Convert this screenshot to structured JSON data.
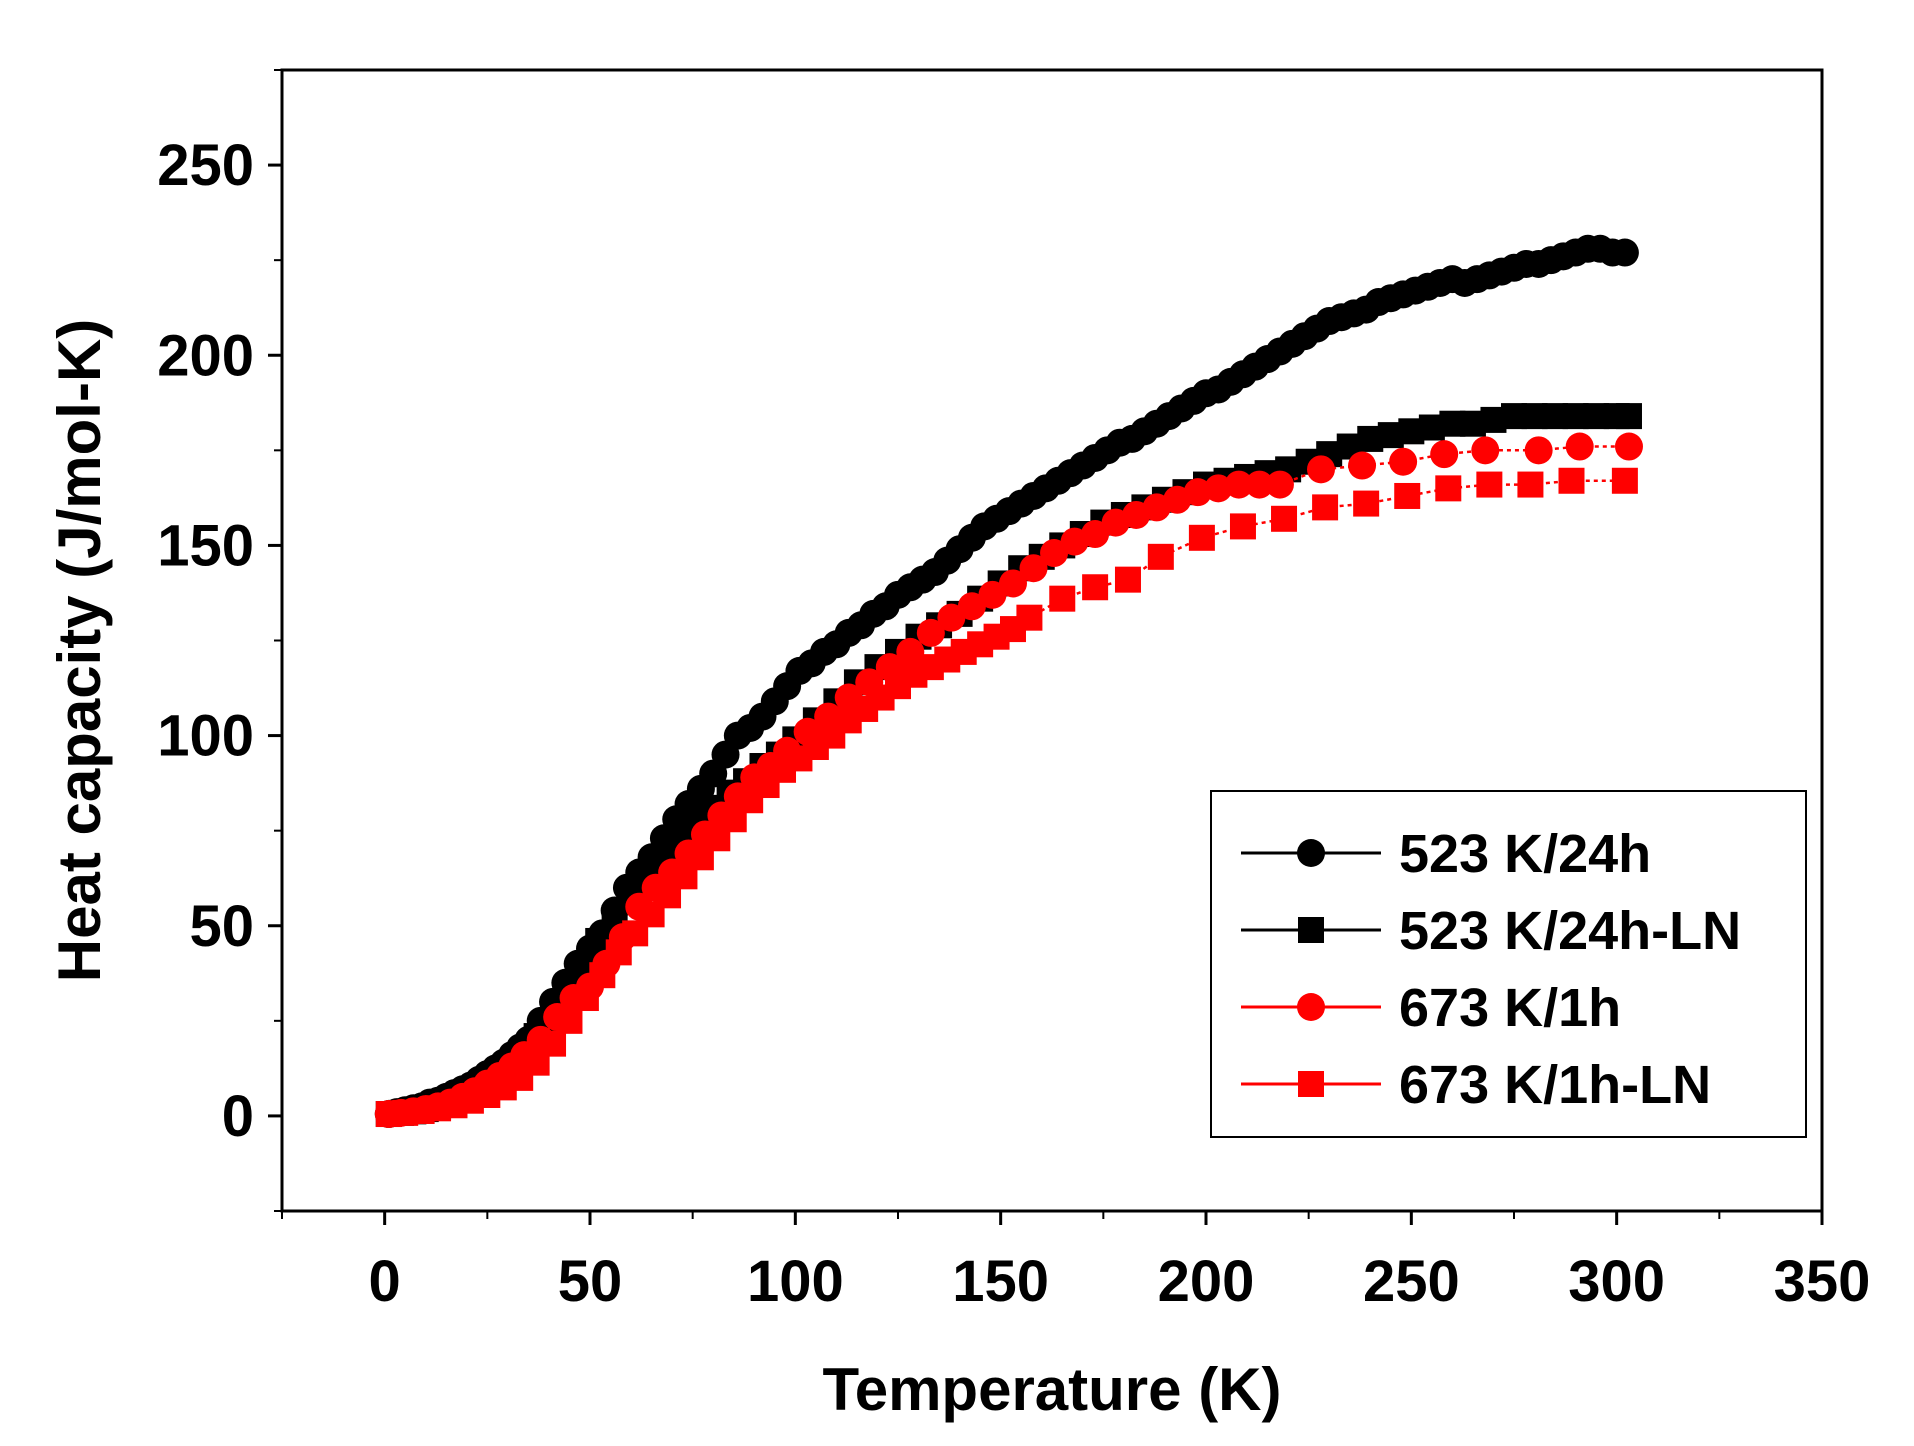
{
  "chart_data": {
    "type": "scatter",
    "title": "",
    "xlabel": "Temperature (K)",
    "ylabel": "Heat capacity (J/mol-K)",
    "xlim": [
      -25,
      350
    ],
    "ylim": [
      -25,
      275
    ],
    "xticks": [
      0,
      50,
      100,
      150,
      200,
      250,
      300,
      350
    ],
    "xtick_labels": [
      "0",
      "50",
      "100",
      "150",
      "200",
      "250",
      "300",
      "350"
    ],
    "yticks": [
      0,
      50,
      100,
      150,
      200,
      250
    ],
    "ytick_labels": [
      "0",
      "50",
      "100",
      "150",
      "200",
      "250"
    ],
    "grid": false,
    "legend_position": "bottom-right",
    "series": [
      {
        "name": "523 K/24h",
        "color": "#000000",
        "marker": "circle",
        "x": [
          1,
          3,
          5,
          7,
          9,
          11,
          13,
          15,
          17,
          19,
          21,
          23,
          25,
          27,
          29,
          31,
          33,
          35,
          38,
          41,
          44,
          47,
          50,
          53,
          56,
          59,
          62,
          65,
          68,
          71,
          74,
          77,
          80,
          83,
          86,
          89,
          92,
          95,
          98,
          101,
          104,
          107,
          110,
          113,
          116,
          119,
          122,
          125,
          128,
          131,
          134,
          137,
          140,
          143,
          146,
          149,
          152,
          155,
          158,
          161,
          164,
          167,
          170,
          173,
          176,
          179,
          182,
          185,
          188,
          191,
          194,
          197,
          200,
          203,
          206,
          209,
          212,
          215,
          218,
          221,
          224,
          227,
          230,
          233,
          236,
          239,
          242,
          245,
          248,
          251,
          254,
          257,
          260,
          263,
          266,
          269,
          272,
          275,
          278,
          281,
          284,
          287,
          290,
          293,
          296,
          299,
          302
        ],
        "y": [
          0.5,
          1,
          1.5,
          2,
          2.5,
          3.5,
          4,
          5,
          6,
          7,
          8,
          9.5,
          11,
          12.5,
          14,
          16,
          18,
          20,
          25,
          30,
          35,
          40,
          44,
          48,
          54,
          60,
          64,
          68,
          73,
          78,
          82,
          86,
          90,
          95,
          100,
          102,
          105,
          109,
          113,
          117,
          119,
          122,
          124,
          127,
          129,
          132,
          134,
          137,
          139,
          141,
          143,
          146,
          149,
          152,
          155,
          157,
          159,
          161,
          163,
          165,
          167,
          169,
          171,
          173,
          175,
          177,
          178,
          180,
          182,
          184,
          186,
          188,
          190,
          191,
          193,
          195,
          197,
          199,
          201,
          203,
          205,
          207,
          209,
          210,
          211,
          212,
          214,
          215,
          216,
          217,
          218,
          219,
          220,
          219,
          220,
          221,
          222,
          223,
          224,
          224,
          225,
          226,
          227,
          228,
          228,
          227,
          227
        ]
      },
      {
        "name": "523 K/24h-LN",
        "color": "#000000",
        "marker": "square",
        "x": [
          1,
          4,
          7,
          10,
          13,
          16,
          19,
          22,
          25,
          28,
          31,
          34,
          37,
          40,
          44,
          48,
          52,
          56,
          60,
          64,
          68,
          72,
          76,
          80,
          84,
          88,
          92,
          96,
          100,
          105,
          110,
          115,
          120,
          125,
          130,
          135,
          140,
          145,
          150,
          155,
          160,
          165,
          170,
          175,
          180,
          185,
          190,
          195,
          200,
          205,
          210,
          215,
          220,
          225,
          230,
          235,
          240,
          245,
          250,
          255,
          260,
          265,
          270,
          275,
          280,
          285,
          290,
          295,
          300,
          303
        ],
        "y": [
          0.5,
          0.8,
          1.2,
          1.8,
          2.5,
          3.5,
          5,
          6.5,
          8.5,
          11,
          14,
          17,
          21,
          25,
          32,
          39,
          46,
          52,
          58,
          64,
          68,
          73,
          77,
          81,
          85,
          88,
          92,
          95,
          99,
          104,
          109,
          114,
          118,
          122,
          126,
          129,
          132,
          136,
          140,
          144,
          147,
          150,
          153,
          156,
          158,
          160,
          162,
          164,
          166,
          167,
          168,
          169,
          170,
          172,
          174,
          176,
          178,
          179,
          180,
          181,
          182,
          182,
          183,
          184,
          184,
          184,
          184,
          184,
          184,
          184
        ]
      },
      {
        "name": "673 K/1h",
        "color": "#ff0000",
        "marker": "circle",
        "x": [
          1,
          4,
          7,
          10,
          13,
          16,
          19,
          22,
          25,
          28,
          31,
          34,
          38,
          42,
          46,
          50,
          54,
          58,
          62,
          66,
          70,
          74,
          78,
          82,
          86,
          90,
          94,
          98,
          103,
          108,
          113,
          118,
          123,
          128,
          133,
          138,
          143,
          148,
          153,
          158,
          163,
          168,
          173,
          178,
          183,
          188,
          193,
          198,
          203,
          208,
          213,
          218,
          228,
          238,
          248,
          258,
          268,
          281,
          291,
          303
        ],
        "y": [
          0.5,
          0.8,
          1.2,
          1.8,
          2.5,
          3.5,
          5,
          6.5,
          8.5,
          10.5,
          13,
          16,
          20,
          26,
          31,
          34,
          40,
          47,
          55,
          60,
          64,
          69,
          74,
          79,
          84,
          89,
          92,
          96,
          101,
          105,
          110,
          114,
          118,
          122,
          127,
          131,
          134,
          137,
          140,
          144,
          148,
          151,
          153,
          156,
          158,
          160,
          162,
          164,
          165,
          166,
          166,
          166,
          170,
          171,
          172,
          174,
          175,
          175,
          176,
          176
        ]
      },
      {
        "name": "673 K/1h-LN",
        "color": "#ff0000",
        "marker": "square",
        "x": [
          1,
          5,
          9,
          13,
          17,
          21,
          25,
          29,
          33,
          37,
          41,
          45,
          49,
          53,
          57,
          61,
          65,
          69,
          73,
          77,
          81,
          85,
          89,
          93,
          97,
          101,
          105,
          109,
          113,
          117,
          121,
          125,
          129,
          133,
          137,
          141,
          145,
          149,
          153,
          157,
          165,
          173,
          181,
          189,
          199,
          209,
          219,
          229,
          239,
          249,
          259,
          269,
          279,
          289,
          302
        ],
        "y": [
          0.5,
          0.8,
          1.3,
          2,
          2.8,
          4,
          5.5,
          7.5,
          10,
          14,
          19,
          25,
          31,
          37,
          43,
          48,
          53,
          58,
          63,
          68,
          73,
          78,
          83,
          87,
          91,
          94,
          97,
          100,
          104,
          107,
          110,
          113,
          116,
          118,
          120,
          122,
          124,
          126,
          128,
          131,
          136,
          139,
          141,
          147,
          152,
          155,
          157,
          160,
          161,
          163,
          165,
          166,
          166,
          167,
          167
        ]
      }
    ]
  }
}
